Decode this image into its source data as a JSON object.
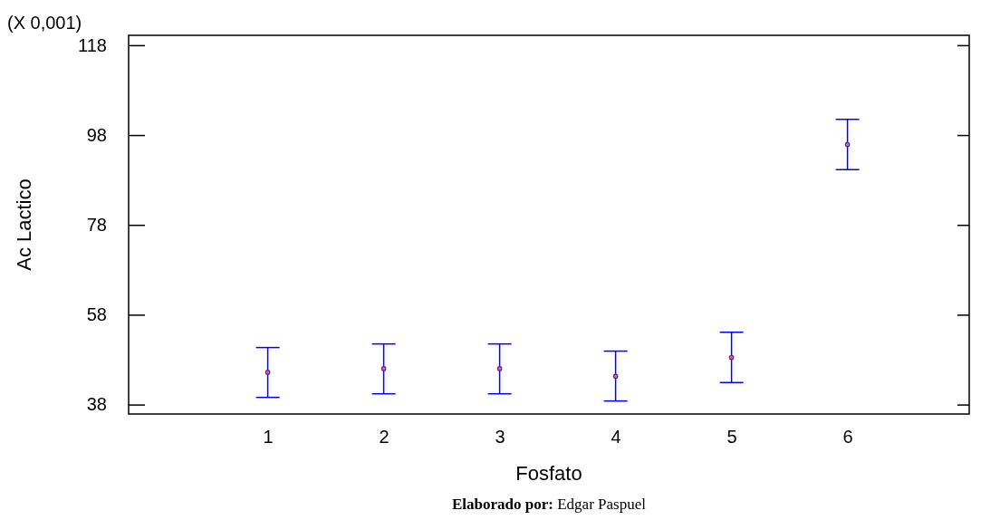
{
  "chart_data": {
    "type": "scatter",
    "xlabel": "Fosfato",
    "ylabel": "Ac Lactico",
    "x": [
      1,
      2,
      3,
      4,
      5,
      6
    ],
    "xlim": [
      -0.2,
      7.05
    ],
    "xticks": [
      1,
      2,
      3,
      4,
      5,
      6
    ],
    "ylim": [
      35.9,
      120.2
    ],
    "yticks": [
      38,
      58,
      78,
      98,
      118
    ],
    "series": [
      {
        "color": "#a0105a",
        "values": [
          45.2,
          46.0,
          46.0,
          44.3,
          48.5,
          95.9
        ],
        "errors": [
          [
            39.6,
            50.7
          ],
          [
            40.4,
            51.5
          ],
          [
            40.4,
            51.5
          ],
          [
            38.8,
            49.9
          ],
          [
            42.9,
            54.1
          ],
          [
            90.3,
            101.5
          ]
        ]
      }
    ],
    "marker": "circle",
    "annotations": [
      "(X 0,001)",
      "Elaborado por: Edgar Paspuel"
    ]
  }
}
